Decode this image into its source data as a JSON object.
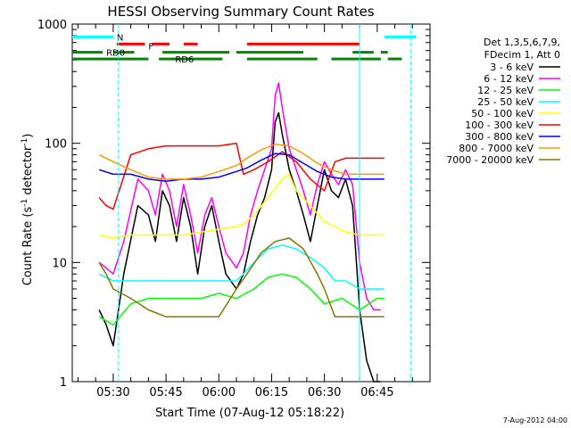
{
  "chart_data": {
    "type": "line",
    "title": "HESSI Observing Summary Count Rates",
    "xlabel": "Start Time (07-Aug-12 05:18:22)",
    "ylabel_main": "Count Rate (s",
    "ylabel_sup1": "-1",
    "ylabel_mid": " detector",
    "ylabel_sup2": "-1",
    "ylabel_end": ")",
    "yscale": "log",
    "xlim": [
      "05:18:22",
      "07:00:00"
    ],
    "ylim": [
      1,
      1000
    ],
    "x_ticks": [
      "05:30",
      "05:45",
      "06:00",
      "06:15",
      "06:30",
      "06:45"
    ],
    "y_tick_labels": [
      "1",
      "10",
      "100",
      "1000"
    ],
    "legend_header": [
      "Det 1,3,5,6,7,9,",
      "FDecim 1, Att 0"
    ],
    "series": [
      {
        "name": "3 - 6 keV",
        "color": "#000000",
        "x": [
          "05:26",
          "05:28",
          "05:30",
          "05:33",
          "05:37",
          "05:40",
          "05:42",
          "05:44",
          "05:46",
          "05:48",
          "05:50",
          "05:52",
          "05:54",
          "05:56",
          "05:58",
          "06:00",
          "06:02",
          "06:05",
          "06:07",
          "06:09",
          "06:11",
          "06:13",
          "06:15",
          "06:16",
          "06:17",
          "06:18",
          "06:20",
          "06:22",
          "06:24",
          "06:26",
          "06:28",
          "06:30",
          "06:32",
          "06:34",
          "06:36",
          "06:38",
          "06:40",
          "06:42",
          "06:44",
          "06:46"
        ],
        "values": [
          4,
          3,
          2,
          8,
          30,
          25,
          15,
          40,
          30,
          15,
          35,
          20,
          8,
          20,
          30,
          15,
          8,
          6,
          8,
          15,
          25,
          35,
          60,
          150,
          180,
          120,
          60,
          40,
          25,
          15,
          30,
          60,
          40,
          35,
          50,
          30,
          4,
          1.5,
          1,
          1
        ]
      },
      {
        "name": "6 - 12 keV",
        "color": "#ff00ff",
        "x": [
          "05:26",
          "05:28",
          "05:30",
          "05:33",
          "05:37",
          "05:40",
          "05:42",
          "05:44",
          "05:46",
          "05:48",
          "05:50",
          "05:52",
          "05:54",
          "05:56",
          "05:58",
          "06:00",
          "06:02",
          "06:05",
          "06:07",
          "06:09",
          "06:11",
          "06:13",
          "06:15",
          "06:16",
          "06:17",
          "06:18",
          "06:20",
          "06:22",
          "06:24",
          "06:26",
          "06:28",
          "06:30",
          "06:32",
          "06:34",
          "06:36",
          "06:38",
          "06:40",
          "06:42",
          "06:44",
          "06:46"
        ],
        "values": [
          10,
          9,
          8,
          15,
          50,
          40,
          25,
          55,
          40,
          20,
          45,
          25,
          12,
          25,
          35,
          20,
          12,
          9,
          12,
          25,
          40,
          60,
          90,
          250,
          320,
          200,
          90,
          60,
          40,
          25,
          45,
          70,
          55,
          45,
          60,
          45,
          10,
          5,
          4,
          4
        ]
      },
      {
        "name": "12 - 25 keV",
        "color": "#00ff00",
        "x": [
          "05:26",
          "05:30",
          "05:35",
          "05:40",
          "05:45",
          "05:50",
          "05:55",
          "06:00",
          "06:05",
          "06:10",
          "06:14",
          "06:18",
          "06:22",
          "06:26",
          "06:30",
          "06:35",
          "06:40",
          "06:45",
          "06:47"
        ],
        "values": [
          3.5,
          3,
          4.5,
          5,
          5,
          5,
          5,
          5.5,
          5,
          6,
          7.5,
          8,
          7.5,
          6,
          4.5,
          5,
          4,
          5,
          5
        ]
      },
      {
        "name": "25 - 50 keV",
        "color": "#00ffff",
        "x": [
          "05:26",
          "05:30",
          "05:35",
          "05:40",
          "05:45",
          "05:50",
          "05:55",
          "06:00",
          "06:05",
          "06:07",
          "06:10",
          "06:14",
          "06:18",
          "06:22",
          "06:26",
          "06:30",
          "06:33",
          "06:36",
          "06:40",
          "06:45",
          "06:47"
        ],
        "values": [
          8,
          7,
          7,
          7,
          7,
          7,
          7,
          7,
          7,
          8,
          10,
          13,
          14,
          13,
          11,
          9,
          7,
          7,
          6,
          6,
          6
        ]
      },
      {
        "name": "50 - 100 keV",
        "color": "#ffff00",
        "x": [
          "05:26",
          "05:30",
          "05:35",
          "05:40",
          "05:45",
          "05:50",
          "05:55",
          "06:00",
          "06:05",
          "06:07",
          "06:10",
          "06:14",
          "06:18",
          "06:20",
          "06:22",
          "06:26",
          "06:30",
          "06:33",
          "06:36",
          "06:40",
          "06:45",
          "06:47"
        ],
        "values": [
          17,
          16,
          17,
          17,
          17,
          17,
          18,
          19,
          20,
          21,
          25,
          35,
          50,
          55,
          40,
          30,
          22,
          20,
          18,
          17,
          17,
          17
        ]
      },
      {
        "name": "100 - 300 keV",
        "color": "#ff0000",
        "x": [
          "05:26",
          "05:28",
          "05:30",
          "05:35",
          "05:40",
          "05:45",
          "05:50",
          "05:55",
          "06:00",
          "06:05",
          "06:07",
          "06:10",
          "06:14",
          "06:18",
          "06:22",
          "06:26",
          "06:30",
          "06:33",
          "06:36",
          "06:40",
          "06:45",
          "06:47"
        ],
        "values": [
          35,
          30,
          28,
          80,
          90,
          95,
          95,
          95,
          95,
          100,
          55,
          60,
          70,
          85,
          70,
          50,
          40,
          70,
          75,
          75,
          75,
          75
        ]
      },
      {
        "name": "300 - 800 keV",
        "color": "#0000ff",
        "x": [
          "05:26",
          "05:30",
          "05:35",
          "05:40",
          "05:45",
          "05:50",
          "05:55",
          "06:00",
          "06:05",
          "06:08",
          "06:12",
          "06:16",
          "06:20",
          "06:24",
          "06:28",
          "06:32",
          "06:36",
          "06:40",
          "06:45",
          "06:47"
        ],
        "values": [
          60,
          55,
          55,
          50,
          48,
          50,
          50,
          52,
          58,
          62,
          72,
          82,
          80,
          68,
          58,
          52,
          50,
          50,
          50,
          50
        ]
      },
      {
        "name": "800 - 7000 keV",
        "color": "#ff9900",
        "x": [
          "05:26",
          "05:30",
          "05:35",
          "05:40",
          "05:45",
          "05:50",
          "05:55",
          "06:00",
          "06:05",
          "06:08",
          "06:12",
          "06:16",
          "06:20",
          "06:24",
          "06:28",
          "06:32",
          "06:36",
          "06:40",
          "06:45",
          "06:47"
        ],
        "values": [
          80,
          70,
          60,
          52,
          50,
          50,
          52,
          58,
          65,
          75,
          88,
          98,
          95,
          82,
          68,
          60,
          55,
          55,
          55,
          55
        ]
      },
      {
        "name": "7000 - 20000 keV",
        "color": "#887700",
        "x": [
          "05:26",
          "05:28",
          "05:30",
          "05:35",
          "05:40",
          "05:45",
          "05:50",
          "05:55",
          "06:00",
          "06:05",
          "06:08",
          "06:12",
          "06:16",
          "06:20",
          "06:24",
          "06:28",
          "06:30",
          "06:33",
          "06:36",
          "06:40",
          "06:45",
          "06:47"
        ],
        "values": [
          10,
          8,
          6,
          5,
          4,
          3.5,
          3.5,
          3.5,
          3.5,
          6,
          8,
          12,
          15,
          16,
          13,
          8,
          6,
          3.5,
          3.5,
          3.5,
          3.5,
          3.5
        ]
      }
    ],
    "flag_bars": [
      {
        "label": "N",
        "color": "#00ffff",
        "segments": [
          [
            "05:18:22",
            "05:30:00"
          ],
          [
            "06:47:00",
            "06:56:00"
          ]
        ],
        "level": 780
      },
      {
        "label": "F",
        "color": "#ff0000",
        "segments": [
          [
            "05:31:00",
            "05:39:00"
          ],
          [
            "05:41:00",
            "05:46:00"
          ],
          [
            "05:50:00",
            "05:54:00"
          ],
          [
            "06:08:00",
            "06:40:00"
          ]
        ],
        "level": 680
      },
      {
        "label": "RD0",
        "color": "#008800",
        "segments": [
          [
            "05:18:22",
            "05:27:00"
          ],
          [
            "05:30:00",
            "05:36:00"
          ],
          [
            "05:44:00",
            "06:03:00"
          ],
          [
            "06:05:00",
            "06:24:00"
          ],
          [
            "06:38:00",
            "06:44:00"
          ],
          [
            "06:46:00",
            "06:48:00"
          ]
        ],
        "level": 580
      },
      {
        "label": "RD6",
        "color": "#008800",
        "segments": [
          [
            "05:18:22",
            "05:40:00"
          ],
          [
            "05:43:00",
            "06:01:00"
          ],
          [
            "06:08:00",
            "06:28:00"
          ],
          [
            "06:32:00",
            "06:46:00"
          ],
          [
            "06:48:00",
            "06:52:00"
          ]
        ],
        "level": 510
      }
    ],
    "vlines": [
      {
        "x": "05:31:30",
        "style": "dashed",
        "color": "#00ffff"
      },
      {
        "x": "06:40:00",
        "style": "solid",
        "color": "#00ffff"
      },
      {
        "x": "06:54:30",
        "style": "dashed",
        "color": "#00ffff"
      }
    ],
    "footer": "7-Aug-2012 04:00"
  }
}
